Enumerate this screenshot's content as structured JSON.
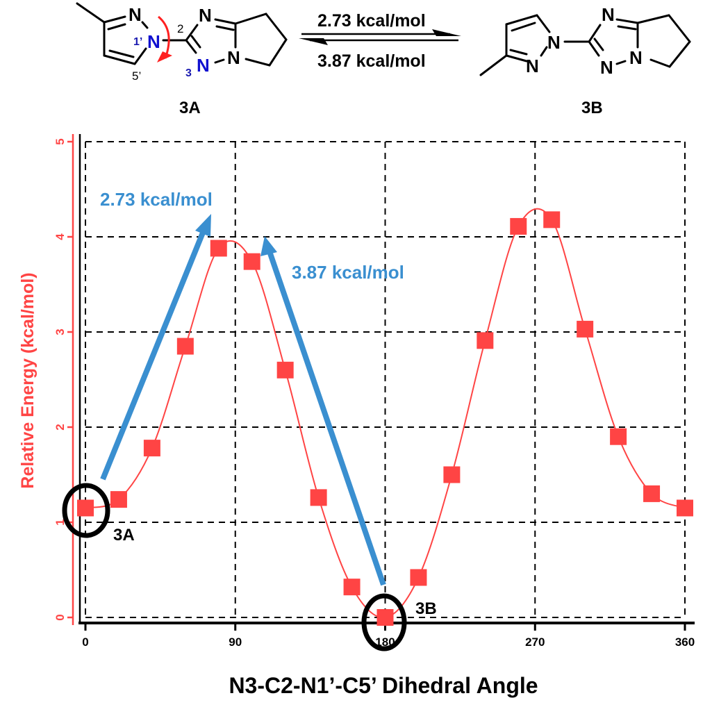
{
  "scheme": {
    "left_compound": {
      "label": "3A",
      "atoms": {
        "n_top": "N",
        "n1p": "N",
        "n1p_num": "1’",
        "c2_num": "2",
        "n3": "N",
        "n3_num": "3",
        "c5p_num": "5’",
        "n_tri_top": "N",
        "n_bridge": "N"
      }
    },
    "right_compound": {
      "label": "3B",
      "atoms": {
        "n1": "N",
        "n2": "N",
        "n_tri_top": "N",
        "n_tri_bottom": "N",
        "n_bridge": "N"
      }
    },
    "equilibrium": {
      "forward": "2.73 kcal/mol",
      "reverse": "3.87 kcal/mol"
    }
  },
  "chart_data": {
    "type": "line",
    "title": "",
    "xlabel": "N3-C2-N1’-C5’ Dihedral Angle",
    "ylabel": "Relative Energy (kcal/mol)",
    "xlim": [
      0,
      360
    ],
    "ylim": [
      0,
      5
    ],
    "xticks": [
      0,
      90,
      180,
      270,
      360
    ],
    "yticks": [
      0,
      1,
      2,
      3,
      4,
      5
    ],
    "grid": true,
    "marker": "square",
    "line_smooth": true,
    "series": [
      {
        "name": "Relative Energy",
        "color": "#ff4444",
        "x": [
          0,
          20,
          40,
          60,
          80,
          100,
          120,
          140,
          160,
          180,
          200,
          220,
          240,
          260,
          280,
          300,
          320,
          340,
          360
        ],
        "values": [
          1.15,
          1.24,
          1.78,
          2.85,
          3.88,
          3.74,
          2.6,
          1.26,
          0.32,
          0.0,
          0.42,
          1.5,
          2.91,
          4.11,
          4.18,
          3.03,
          1.9,
          1.3,
          1.15
        ]
      }
    ],
    "annotations": [
      {
        "text": "2.73 kcal/mol",
        "type": "arrow",
        "color": "#3a8fd0",
        "from": [
          10,
          1.44
        ],
        "to": [
          75,
          4.2
        ]
      },
      {
        "text": "3.87 kcal/mol",
        "type": "arrow",
        "color": "#3a8fd0",
        "from": [
          179,
          0.34
        ],
        "to": [
          109,
          4.02
        ]
      },
      {
        "text": "3A",
        "type": "circle",
        "at": [
          0,
          1.15
        ]
      },
      {
        "text": "3B",
        "type": "circle",
        "at": [
          180,
          0.0
        ]
      }
    ]
  },
  "axis": {
    "y_ticks_text": [
      "0",
      "1",
      "2",
      "3",
      "4",
      "5"
    ],
    "x_ticks_text": [
      "0",
      "90",
      "180",
      "270",
      "360"
    ]
  },
  "colors": {
    "series": "#ff4444",
    "annotation": "#3a8fd0",
    "label_blue": "#1010d0"
  }
}
